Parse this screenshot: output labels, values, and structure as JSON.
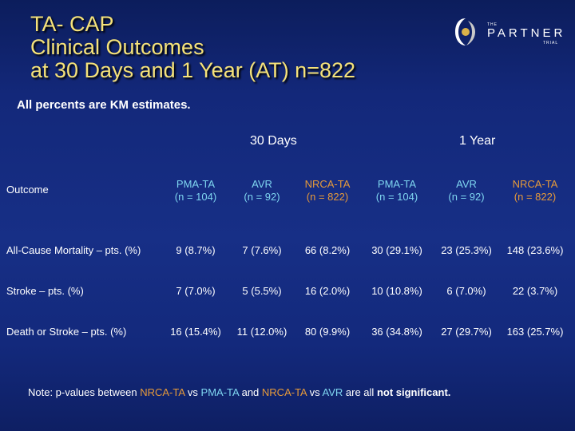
{
  "title": {
    "line1": "TA- CAP",
    "line2": "Clinical Outcomes",
    "line3": "at 30 Days and 1 Year (AT) n=822"
  },
  "logo": {
    "the": "THE",
    "name": "PARTNER",
    "trial": "TRIAL"
  },
  "subtitle": "All percents are KM estimates.",
  "periods": {
    "days30": "30 Days",
    "year1": "1 Year"
  },
  "table": {
    "outcome_header": "Outcome",
    "columns": [
      {
        "arm": "PMA-TA",
        "n": "(n = 104)"
      },
      {
        "arm": "AVR",
        "n": "(n = 92)"
      },
      {
        "arm": "NRCA-TA",
        "n": "(n = 822)"
      },
      {
        "arm": "PMA-TA",
        "n": "(n = 104)"
      },
      {
        "arm": "AVR",
        "n": "(n = 92)"
      },
      {
        "arm": "NRCA-TA",
        "n": "(n = 822)"
      }
    ],
    "rows": [
      {
        "label": "All-Cause Mortality – pts. (%)",
        "values": [
          "9 (8.7%)",
          "7 (7.6%)",
          "66 (8.2%)",
          "30 (29.1%)",
          "23 (25.3%)",
          "148 (23.6%)"
        ]
      },
      {
        "label": "Stroke – pts. (%)",
        "values": [
          "7 (7.0%)",
          "5 (5.5%)",
          "16 (2.0%)",
          "10 (10.8%)",
          "6 (7.0%)",
          "22 (3.7%)"
        ]
      },
      {
        "label": "Death or Stroke – pts. (%)",
        "values": [
          "16 (15.4%)",
          "11 (12.0%)",
          "80 (9.9%)",
          "36 (34.8%)",
          "27 (29.7%)",
          "163 (25.7%)"
        ]
      }
    ]
  },
  "note": {
    "prefix": "Note: p-values between ",
    "nrca1": "NRCA-TA",
    "vs1": " vs ",
    "pma": "PMA-TA",
    "and": " and ",
    "nrca2": "NRCA-TA",
    "vs2": " vs ",
    "avr": "AVR",
    "are_all": " are all ",
    "not_sig": "not significant."
  },
  "colors": {
    "title": "#f5e27a",
    "nrca": "#e69a3a",
    "comparator": "#7fd6f0",
    "background": "#172f86"
  }
}
